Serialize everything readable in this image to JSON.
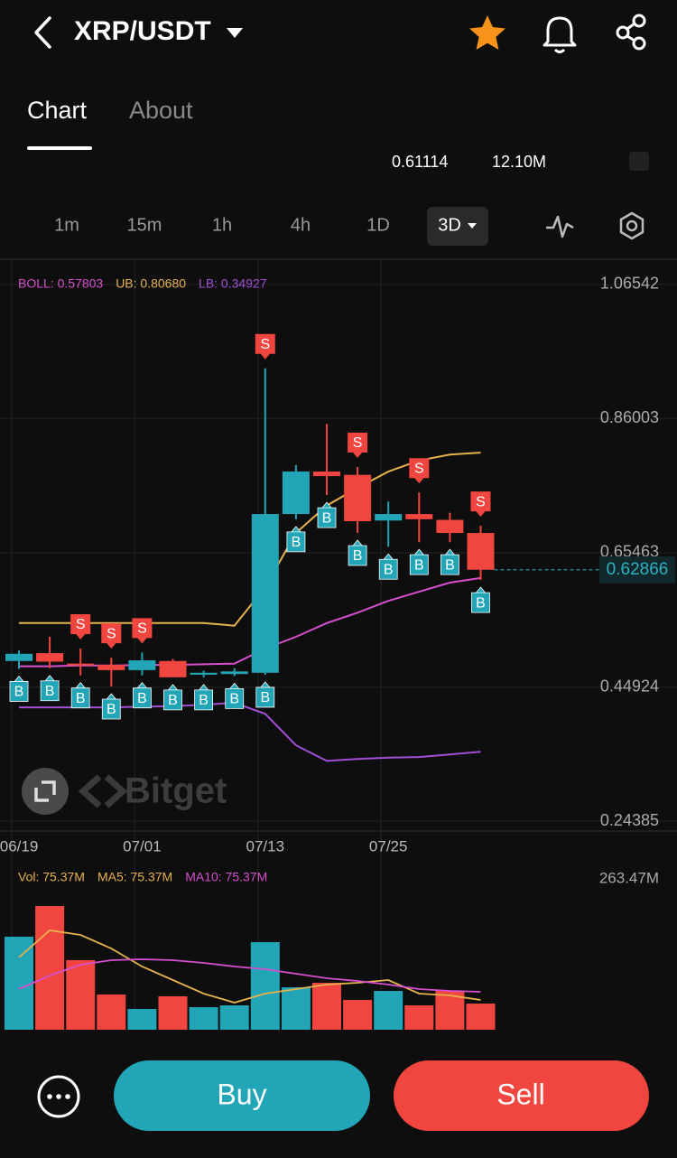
{
  "header": {
    "title": "XRP/USDT"
  },
  "tabs": [
    "Chart",
    "About"
  ],
  "stats": [
    "0.61114",
    "12.10M"
  ],
  "intervals": [
    "1m",
    "15m",
    "1h",
    "4h",
    "1D",
    "3D"
  ],
  "watermark": "Bitget",
  "buttons": {
    "buy": "Buy",
    "sell": "Sell"
  },
  "chart_data": [
    {
      "type": "candlestick",
      "categories": [
        "06/19",
        null,
        null,
        null,
        "07/01",
        null,
        null,
        null,
        "07/13",
        null,
        null,
        null,
        "07/25",
        null,
        null,
        null
      ],
      "open": [
        0.489,
        0.501,
        0.485,
        0.483,
        0.475,
        0.489,
        0.468,
        0.469,
        0.471,
        0.714,
        0.779,
        0.774,
        0.704,
        0.714,
        0.705,
        0.685
      ],
      "high": [
        0.505,
        0.526,
        0.508,
        0.494,
        0.502,
        0.492,
        0.474,
        0.478,
        0.937,
        0.789,
        0.852,
        0.786,
        0.733,
        0.747,
        0.716,
        0.696
      ],
      "low": [
        0.477,
        0.478,
        0.467,
        0.45,
        0.467,
        0.464,
        0.464,
        0.466,
        0.468,
        0.706,
        0.743,
        0.685,
        0.664,
        0.671,
        0.671,
        0.613
      ],
      "close": [
        0.5,
        0.488,
        0.483,
        0.475,
        0.49,
        0.464,
        0.471,
        0.473,
        0.714,
        0.779,
        0.772,
        0.703,
        0.714,
        0.706,
        0.685,
        0.62866
      ],
      "up_color": "#22a5b6",
      "down_color": "#f0463f",
      "buy_signals": [
        "B",
        "B",
        "B",
        "B",
        "B",
        "B",
        "B",
        "B",
        "B",
        "B",
        "B",
        "B",
        "B",
        "B",
        "B",
        "B"
      ],
      "sell_signals": [
        null,
        null,
        "S",
        "S",
        "S",
        null,
        null,
        null,
        "S",
        null,
        null,
        "S",
        null,
        "S",
        null,
        "S"
      ],
      "series": [
        {
          "label": "BOLL: 0.57803",
          "color": "#d64fcf",
          "values": [
            0.481,
            0.481,
            0.482,
            0.482,
            0.483,
            0.483,
            0.484,
            0.485,
            0.508,
            0.526,
            0.547,
            0.563,
            0.581,
            0.595,
            0.609,
            0.616
          ]
        },
        {
          "label": "UB: 0.80680",
          "color": "#e6b24e",
          "values": [
            0.547,
            0.547,
            0.547,
            0.547,
            0.547,
            0.547,
            0.547,
            0.543,
            0.602,
            0.685,
            0.727,
            0.754,
            0.779,
            0.796,
            0.805,
            0.808
          ]
        },
        {
          "label": "LB: 0.34927",
          "color": "#a24ed6",
          "values": [
            0.418,
            0.418,
            0.418,
            0.418,
            0.419,
            0.42,
            0.422,
            0.425,
            0.408,
            0.36,
            0.336,
            0.339,
            0.341,
            0.342,
            0.346,
            0.35
          ]
        }
      ],
      "ylim": [
        0.2287,
        1.0999
      ],
      "yticks": [
        1.06542,
        0.86003,
        0.65463,
        0.44924,
        0.24385
      ]
    },
    {
      "type": "bar",
      "label": "Vol: 75.37M",
      "label_color": "#e6b24e",
      "values": [
        162.5,
        216.1,
        121.5,
        61.5,
        36.3,
        58.4,
        39.4,
        42.6,
        153,
        74.1,
        82,
        52,
        67.8,
        42.6,
        67.8,
        45.7
      ],
      "colors": [
        "#22a5b6",
        "#f0463f",
        "#f0463f",
        "#f0463f",
        "#22a5b6",
        "#f0463f",
        "#22a5b6",
        "#22a5b6",
        "#22a5b6",
        "#22a5b6",
        "#f0463f",
        "#f0463f",
        "#22a5b6",
        "#f0463f",
        "#f0463f",
        "#f0463f"
      ],
      "series": [
        {
          "label": "MA5: 75.37M",
          "color": "#e6b24e",
          "values": [
            126.2,
            173.5,
            165.6,
            141.9,
            110.4,
            86.8,
            63.1,
            47.3,
            63.1,
            71,
            78.9,
            82,
            86.8,
            63.1,
            59.9,
            52.1
          ]
        },
        {
          "label": "MA10: 75.37M",
          "color": "#d64fcf",
          "values": [
            71,
            94.6,
            113.6,
            121.5,
            123,
            121.5,
            116.7,
            110.4,
            105.7,
            97.8,
            89.9,
            85.2,
            78.9,
            71,
            67.8,
            66.2
          ]
        }
      ],
      "ylim": [
        0,
        284
      ],
      "yticks": [
        {
          "value": 263.47,
          "label": "263.47M"
        }
      ]
    }
  ]
}
